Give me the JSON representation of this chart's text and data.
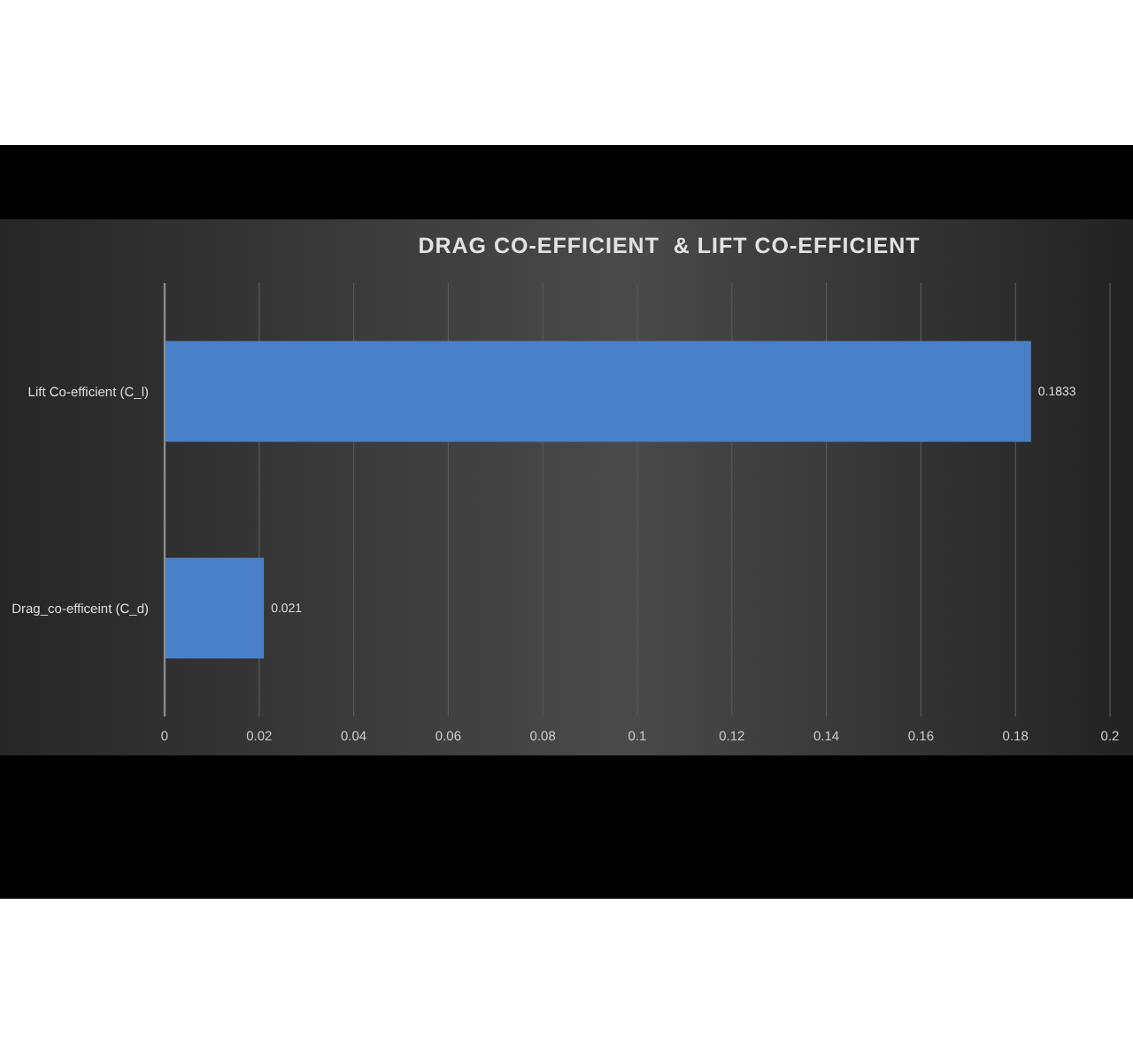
{
  "chart_data": {
    "type": "bar",
    "orientation": "horizontal",
    "title": "DRAG CO-EFFICIENT  & LIFT CO-EFFICIENT",
    "categories": [
      "Lift Co-efficient (C_l)",
      "Drag_co-efficeint (C_d)"
    ],
    "values": [
      0.1833,
      0.021
    ],
    "color": "#4a80c8",
    "xlim": [
      0,
      0.2
    ],
    "xticks": [
      0,
      0.02,
      0.04,
      0.06,
      0.08,
      0.1,
      0.12,
      0.14,
      0.16,
      0.18,
      0.2
    ],
    "grid": "x",
    "data_labels": true
  }
}
